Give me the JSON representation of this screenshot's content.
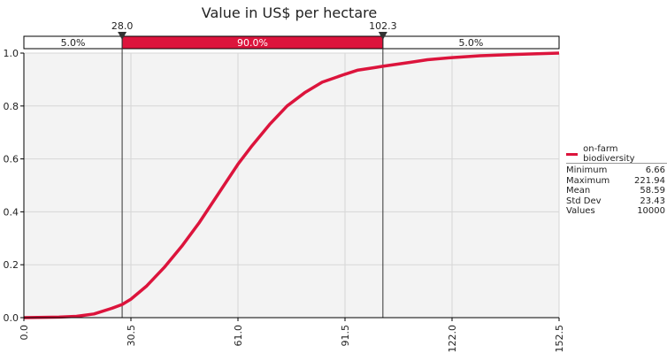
{
  "chart_data": {
    "type": "line",
    "title": "Value in US$ per hectare",
    "xlabel": "",
    "ylabel": "",
    "xlim": [
      0,
      152.5
    ],
    "ylim": [
      0,
      1.0
    ],
    "x_ticks": [
      "0.0",
      "30.5",
      "61.0",
      "91.5",
      "122.0",
      "152.5"
    ],
    "y_ticks": [
      "0.0",
      "0.2",
      "0.4",
      "0.6",
      "0.8",
      "1.0"
    ],
    "grid": true,
    "series": [
      {
        "name": "on-farm biodiversity",
        "color": "#dc143c",
        "x": [
          0,
          10,
          15,
          20,
          25,
          28,
          30.5,
          35,
          40,
          45,
          50,
          55,
          61,
          65,
          70,
          75,
          80,
          85,
          91.5,
          95,
          100,
          102.3,
          110,
          115,
          122,
          130,
          140,
          152.5
        ],
        "y": [
          0.0,
          0.002,
          0.005,
          0.014,
          0.035,
          0.05,
          0.07,
          0.12,
          0.19,
          0.27,
          0.36,
          0.46,
          0.58,
          0.65,
          0.73,
          0.8,
          0.85,
          0.89,
          0.92,
          0.935,
          0.945,
          0.95,
          0.965,
          0.975,
          0.983,
          0.99,
          0.995,
          1.0
        ]
      }
    ],
    "delimiters": {
      "left_value": "28.0",
      "right_value": "102.3",
      "left_x": 28.0,
      "right_x": 102.3,
      "bands": [
        "5.0%",
        "90.0%",
        "5.0%"
      ]
    },
    "legend": {
      "placement": "right",
      "series_name": "on-farm biodiversity",
      "stats": [
        {
          "label": "Minimum",
          "value": "6.66"
        },
        {
          "label": "Maximum",
          "value": "221.94"
        },
        {
          "label": "Mean",
          "value": "58.59"
        },
        {
          "label": "Std Dev",
          "value": "23.43"
        },
        {
          "label": "Values",
          "value": "10000"
        }
      ]
    }
  }
}
